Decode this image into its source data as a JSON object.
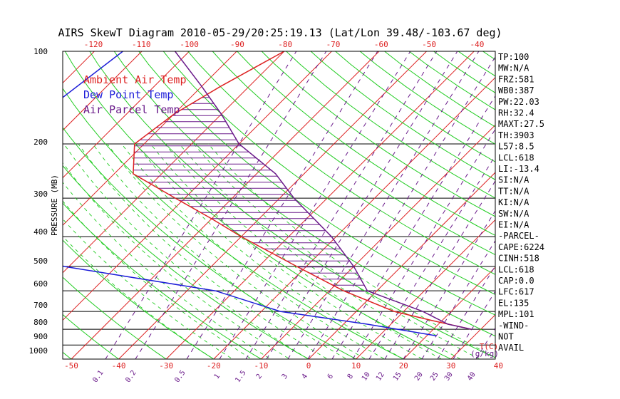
{
  "chart_data": {
    "type": "line",
    "title": "AIRS SkewT Diagram 2010-05-29/20:25:19.13 (Lat/Lon 39.48/-103.67 deg)",
    "ylabel": "PRESSURE (MB)",
    "y_scale": "log",
    "ylim": [
      1000,
      100
    ],
    "y_ticks": [
      "100",
      "200",
      "300",
      "400",
      "500",
      "600",
      "700",
      "800",
      "900",
      "1000"
    ],
    "top_ticks": [
      "-120",
      "-110",
      "-100",
      "-90",
      "-80",
      "-70",
      "-60",
      "-50",
      "-40"
    ],
    "bottom_ticks": [
      "-50",
      "-40",
      "-30",
      "-20",
      "-10",
      "0",
      "10",
      "20",
      "30",
      "40"
    ],
    "bottom_unit": "T(C)",
    "mixing_ratio_labels": [
      "0.1",
      "0.2",
      "0.5",
      "1",
      "1.5",
      "2",
      "3",
      "4",
      "6",
      "8",
      "10",
      "12",
      "15",
      "20",
      "25",
      "30",
      "40"
    ],
    "mixing_ratio_unit": "(g/kg)",
    "legend": [
      {
        "name": "Ambient Air Temp",
        "color": "#dd2222"
      },
      {
        "name": "Dew Point Temp",
        "color": "#1c1cd8"
      },
      {
        "name": "Air Parcel Temp",
        "color": "#6a1a8a"
      }
    ],
    "legend_placement": "top-left",
    "series": [
      {
        "name": "Ambient Air Temp",
        "color": "#dd2222",
        "points": [
          [
            100,
            -70
          ],
          [
            130,
            -76
          ],
          [
            160,
            -80
          ],
          [
            200,
            -82
          ],
          [
            250,
            -76
          ],
          [
            300,
            -62
          ],
          [
            350,
            -50
          ],
          [
            400,
            -40
          ],
          [
            500,
            -22
          ],
          [
            600,
            -7
          ],
          [
            700,
            8
          ],
          [
            750,
            18
          ],
          [
            800,
            28
          ]
        ]
      },
      {
        "name": "Dew Point Temp",
        "color": "#1c1cd8",
        "points": [
          [
            100,
            -104
          ],
          [
            160,
            -108
          ],
          [
            250,
            -102
          ],
          [
            300,
            -108
          ],
          [
            400,
            -98
          ],
          [
            500,
            -71
          ],
          [
            600,
            -34
          ],
          [
            700,
            -16
          ],
          [
            770,
            5
          ],
          [
            840,
            22
          ]
        ]
      },
      {
        "name": "Air Parcel Temp",
        "color": "#6a1a8a",
        "points": [
          [
            100,
            -93
          ],
          [
            130,
            -80
          ],
          [
            160,
            -70
          ],
          [
            200,
            -60
          ],
          [
            250,
            -46
          ],
          [
            300,
            -37
          ],
          [
            400,
            -21
          ],
          [
            500,
            -10
          ],
          [
            600,
            -2
          ],
          [
            700,
            14
          ],
          [
            770,
            22
          ],
          [
            800,
            28
          ]
        ]
      }
    ],
    "isotherms_c": [
      -170,
      -160,
      -150,
      -140,
      -130,
      -120,
      -110,
      -100,
      -90,
      -80,
      -70,
      -60,
      -50,
      -40,
      -30,
      -20,
      -10,
      0,
      10,
      20,
      30,
      40
    ]
  },
  "indices": [
    "TP:100",
    "MW:N/A",
    "FRZ:581",
    "WB0:387",
    "PW:22.03",
    "RH:32.4",
    "MAXT:27.5",
    "TH:3903",
    "L57:8.5",
    "LCL:618",
    "LI:-13.4",
    "SI:N/A",
    "TT:N/A",
    "KI:N/A",
    "SW:N/A",
    "EI:N/A",
    "-PARCEL-",
    "CAPE:6224",
    "CINH:518",
    "LCL:618",
    "CAP:0.0",
    "LFC:617",
    "EL:135",
    "MPL:101",
    "-WIND-",
    "NOT",
    "AVAIL"
  ],
  "colors": {
    "isotherm": "#dd2222",
    "dry_adiabat": "#22cc22",
    "mixing_ratio": "#6a1a8a",
    "frame": "#000000"
  }
}
